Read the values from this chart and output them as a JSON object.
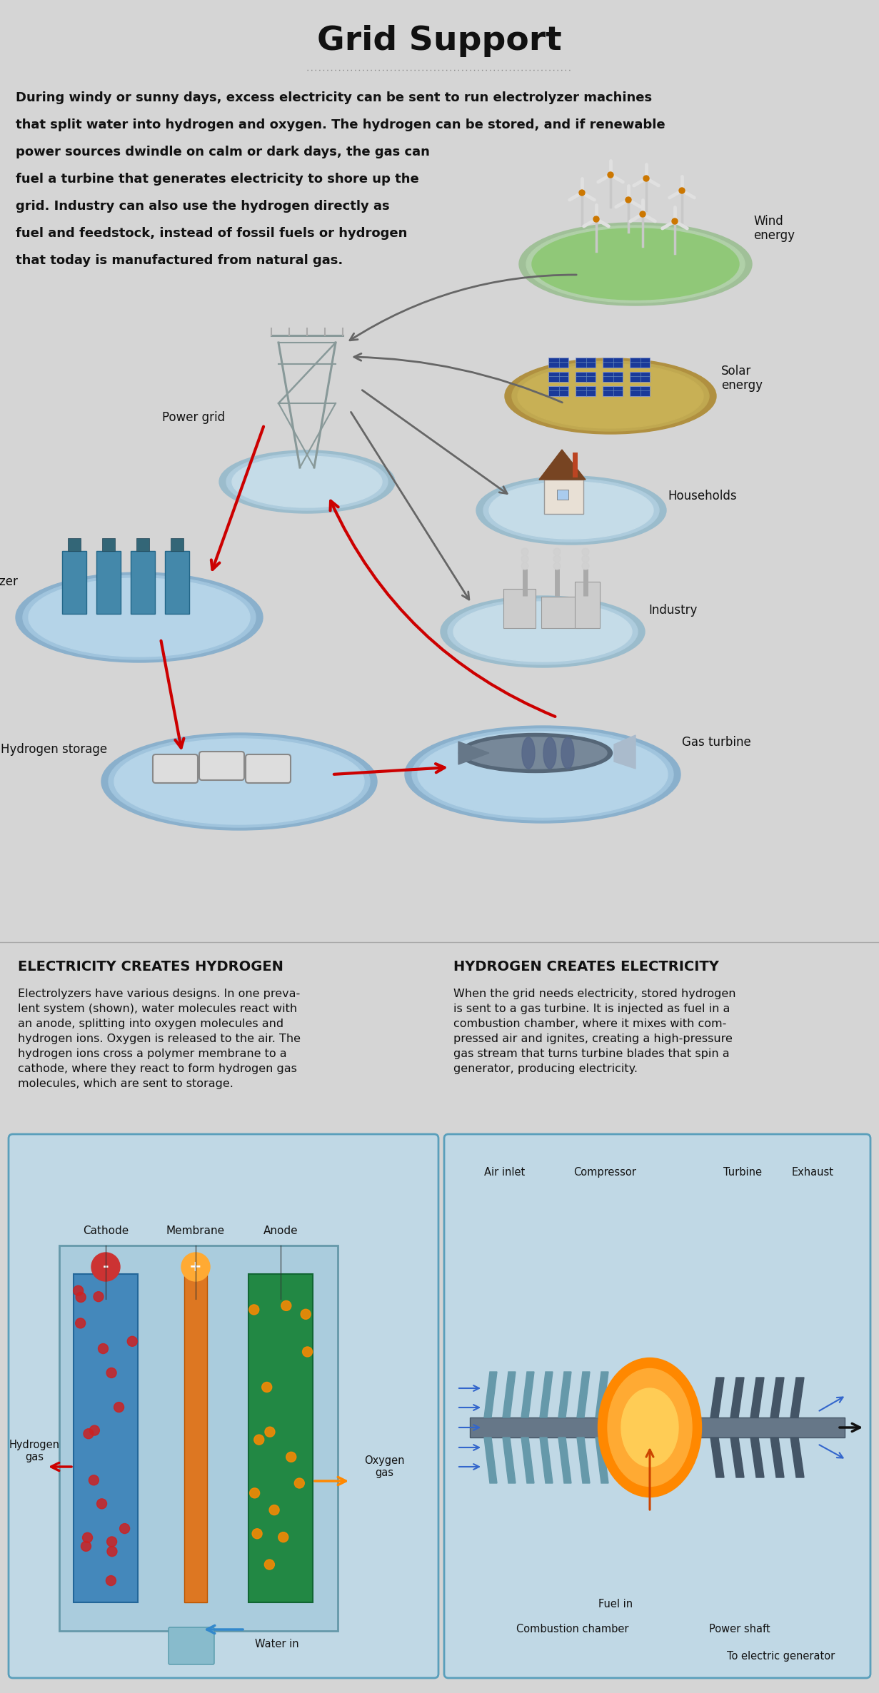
{
  "title": "Grid Support",
  "bg_color": "#d5d5d5",
  "intro_lines": [
    "During windy or sunny days, excess electricity can be sent to run electrolyzer machines",
    "that split water into hydrogen and oxygen. The hydrogen can be stored, and if renewable",
    "power sources dwindle on calm or dark days, the gas can",
    "fuel a turbine that generates electricity to shore up the",
    "grid. Industry can also use the hydrogen directly as",
    "fuel and feedstock, instead of fossil fuels or hydrogen",
    "that today is manufactured from natural gas."
  ],
  "section1_title": "ELECTRICITY CREATES HYDROGEN",
  "section1_body": "Electrolyzers have various designs. In one preva-\nlent system (shown), water molecules react with\nan anode, splitting into oxygen molecules and\nhydrogen ions. Oxygen is released to the air. The\nhydrogen ions cross a polymer membrane to a\ncathode, where they react to form hydrogen gas\nmolecules, which are sent to storage.",
  "section2_title": "HYDROGEN CREATES ELECTRICITY",
  "section2_body": "When the grid needs electricity, stored hydrogen\nis sent to a gas turbine. It is injected as fuel in a\ncombustion chamber, where it mixes with com-\npressed air and ignites, creating a high-pressure\ngas stream that turns turbine blades that spin a\ngenerator, producing electricity.",
  "node_wind_label": "Wind\nenergy",
  "node_solar_label": "Solar\nenergy",
  "node_households_label": "Households",
  "node_industry_label": "Industry",
  "node_powergrid_label": "Power grid",
  "node_electrolyzer_label": "Electrolyzer",
  "node_h2storage_label": "Hydrogen storage",
  "node_gasturbine_label": "Gas turbine",
  "elec_labels": [
    "Cathode",
    "Membrane",
    "Anode",
    "Hydrogen\ngas",
    "Oxygen\ngas",
    "Water in"
  ],
  "turbine_labels": [
    "Air inlet",
    "Compressor",
    "Turbine",
    "Exhaust",
    "Fuel in",
    "Combustion chamber",
    "Power shaft",
    "To electric generator"
  ],
  "red_arrow": "#cc0000",
  "gray_arrow": "#666666",
  "blue_arrow": "#2255bb",
  "orange_arrow": "#dd7700",
  "diagram_bg": "#c0d8e5",
  "diagram_border": "#5a9fbb",
  "platform_outer": "#9bbccc",
  "platform_mid": "#aeccdd",
  "platform_inner": "#c5dce8",
  "wind_green": "#8ec87a",
  "solar_gold": "#c8a850",
  "title_size": 34,
  "body_size": 13,
  "label_size": 12,
  "small_size": 11
}
